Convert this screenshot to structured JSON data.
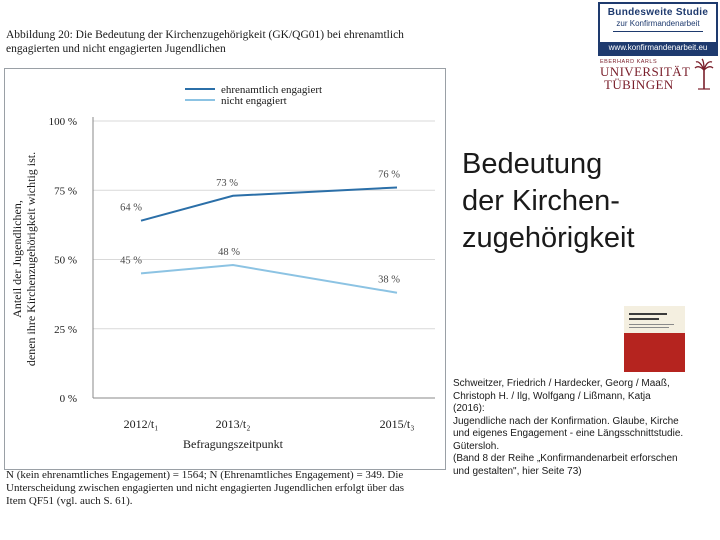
{
  "caption": {
    "line1": "Abbildung 20: Die Bedeutung der Kirchenzugehörigkeit (GK/QG01) bei ehrenamtlich",
    "line2": "engagierten und nicht engagierten Jugendlichen"
  },
  "footnote": {
    "line1": "N (kein ehrenamtliches Engagement) = 1564; N (Ehrenamtliches Engagement) = 349. Die",
    "line2": "Unterscheidung zwischen engagierten und nicht engagierten Jugendlichen erfolgt über das",
    "line3": "Item QF51 (vgl. auch S. 61)."
  },
  "logo": {
    "title": "Bundesweite Studie",
    "subtitle": "zur Konfirmandenarbeit",
    "url": "www.konfirmandenarbeit.eu"
  },
  "university": {
    "prefix": "EBERHARD KARLS",
    "line1": "UNIVERSITÄT",
    "line2": "TÜBINGEN"
  },
  "slide_title": {
    "line1": "Bedeutung",
    "line2": "der Kirchen-",
    "line3": "zugehörigkeit"
  },
  "reference": {
    "lines": [
      "Schweitzer, Friedrich / Hardecker, Georg / Maaß,",
      "Christoph H. / Ilg, Wolfgang / Lißmann, Katja",
      "(2016):",
      "Jugendliche nach der Konfirmation. Glaube, Kirche",
      "und eigenes Engagement - eine Längsschnittstudie.",
      "Gütersloh.",
      "(Band 8 der Reihe „Konfirmandenarbeit erforschen",
      "und gestalten\", hier Seite 73)"
    ]
  },
  "colors": {
    "series1": "#2b6fa8",
    "series2": "#8cc3e3",
    "logo_blue": "#1e3a6e",
    "uni_red": "#7a1f2b"
  },
  "chart_data": {
    "type": "line",
    "categories": [
      "2012/t₁",
      "2013/t₂",
      "2015/t₃"
    ],
    "xlabel": "Befragungszeitpunkt",
    "ylabel": "Anteil der Jugendlichen, denen ihre Kirchenzugehörigkeit wichtig ist.",
    "ylim": [
      0,
      100
    ],
    "yticks": [
      0,
      25,
      50,
      75,
      100
    ],
    "ytick_labels": [
      "0 %",
      "25 %",
      "50 %",
      "75 %",
      "100 %"
    ],
    "grid": true,
    "legend_position": "top-center",
    "series": [
      {
        "name": "ehrenamtlich engagiert",
        "color": "#2b6fa8",
        "values": [
          64,
          73,
          76
        ],
        "labels": [
          "64 %",
          "73 %",
          "76 %"
        ]
      },
      {
        "name": "nicht engagiert",
        "color": "#8cc3e3",
        "values": [
          45,
          48,
          38
        ],
        "labels": [
          "45 %",
          "48 %",
          "38 %"
        ]
      }
    ]
  }
}
